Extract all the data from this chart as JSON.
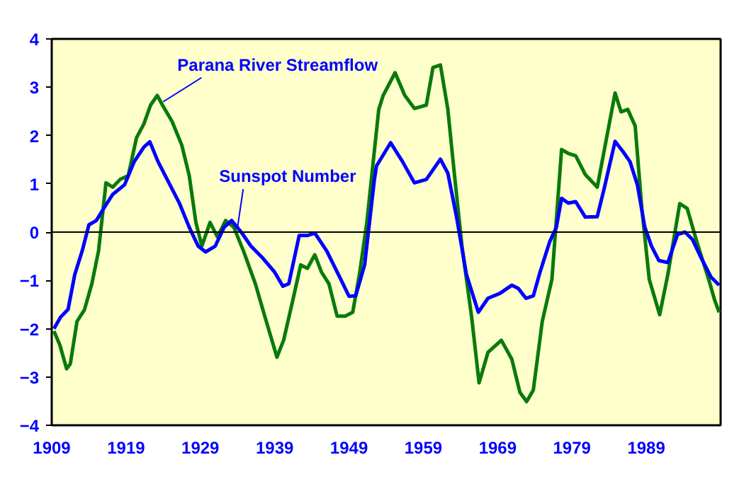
{
  "chart_data": {
    "type": "line",
    "xlim": [
      1909,
      1999
    ],
    "xticks": [
      1909,
      1919,
      1929,
      1939,
      1949,
      1959,
      1969,
      1979,
      1989
    ],
    "ylim": [
      -4,
      4
    ],
    "yticks": [
      -4,
      -3,
      -2,
      -1,
      0,
      1,
      2,
      3,
      4
    ],
    "grid": false,
    "marker": "none",
    "line_style": "solid",
    "ref_lines": [
      {
        "axis": "y",
        "value": 0,
        "color": "#000000"
      }
    ],
    "annotations": [
      {
        "text": "Parana River Streamflow",
        "x": 1924,
        "y": 2.7
      },
      {
        "text": "Sunspot Number",
        "x": 1934,
        "y": 0.1
      }
    ],
    "series": [
      {
        "color": "#0a7a0a",
        "x": [
          1909.3,
          1910.1,
          1911.0,
          1911.5,
          1912.4,
          1913.4,
          1914.4,
          1915.3,
          1916.3,
          1917.2,
          1918.2,
          1919.3,
          1920.4,
          1921.4,
          1922.3,
          1923.2,
          1923.9,
          1925.2,
          1926.5,
          1927.5,
          1928.4,
          1929.2,
          1930.3,
          1931.3,
          1932.4,
          1933.5,
          1934.8,
          1936.4,
          1937.7,
          1939.3,
          1940.2,
          1941.5,
          1942.5,
          1943.4,
          1944.4,
          1945.3,
          1946.3,
          1947.4,
          1948.5,
          1949.5,
          1950.4,
          1951.4,
          1953.0,
          1953.6,
          1955.2,
          1956.5,
          1957.8,
          1959.4,
          1960.3,
          1961.3,
          1962.3,
          1963.2,
          1964.2,
          1965.5,
          1966.5,
          1967.7,
          1969.5,
          1970.9,
          1972.0,
          1972.9,
          1973.8,
          1975.0,
          1976.3,
          1977.6,
          1978.5,
          1979.5,
          1980.8,
          1982.4,
          1983.3,
          1984.8,
          1985.6,
          1986.5,
          1987.5,
          1988.4,
          1989.4,
          1990.8,
          1991.9,
          1993.5,
          1994.5,
          1995.8,
          1997.4,
          1998.2,
          1998.8
        ],
        "values": [
          -2.05,
          -2.34,
          -2.83,
          -2.73,
          -1.85,
          -1.61,
          -1.07,
          -0.39,
          1.02,
          0.93,
          1.09,
          1.17,
          1.95,
          2.24,
          2.63,
          2.83,
          2.63,
          2.29,
          1.8,
          1.17,
          0.2,
          -0.29,
          0.2,
          -0.1,
          0.24,
          0.1,
          -0.39,
          -1.07,
          -1.76,
          -2.59,
          -2.24,
          -1.37,
          -0.68,
          -0.75,
          -0.47,
          -0.83,
          -1.07,
          -1.74,
          -1.74,
          -1.66,
          -0.88,
          0.2,
          2.54,
          2.83,
          3.3,
          2.83,
          2.56,
          2.63,
          3.41,
          3.46,
          2.54,
          1.17,
          -0.29,
          -1.76,
          -3.12,
          -2.49,
          -2.24,
          -2.63,
          -3.32,
          -3.51,
          -3.27,
          -1.85,
          -0.98,
          1.71,
          1.63,
          1.58,
          1.19,
          0.93,
          1.66,
          2.88,
          2.49,
          2.54,
          2.2,
          0.49,
          -0.98,
          -1.71,
          -0.88,
          0.59,
          0.49,
          -0.2,
          -0.98,
          -1.41,
          -1.66
        ]
      },
      {
        "color": "#0000ff",
        "x": [
          1909.3,
          1910.2,
          1911.2,
          1912.1,
          1913.1,
          1914.0,
          1915.0,
          1916.0,
          1917.2,
          1918.8,
          1920.1,
          1921.4,
          1922.2,
          1923.3,
          1924.6,
          1926.2,
          1927.5,
          1928.7,
          1929.7,
          1931.0,
          1932.2,
          1933.2,
          1934.5,
          1935.8,
          1937.4,
          1939.0,
          1940.1,
          1940.9,
          1942.3,
          1943.4,
          1944.4,
          1946.0,
          1947.9,
          1949.0,
          1949.9,
          1951.1,
          1952.4,
          1952.7,
          1954.6,
          1956.2,
          1957.8,
          1959.4,
          1961.3,
          1962.3,
          1963.5,
          1964.8,
          1966.4,
          1967.7,
          1969.3,
          1970.9,
          1971.8,
          1972.8,
          1973.8,
          1974.7,
          1976.0,
          1976.9,
          1977.6,
          1978.5,
          1979.5,
          1980.8,
          1982.4,
          1983.3,
          1984.8,
          1985.9,
          1986.8,
          1987.8,
          1988.8,
          1989.7,
          1990.7,
          1991.9,
          1993.2,
          1994.2,
          1995.2,
          1996.4,
          1997.7,
          1998.8
        ],
        "values": [
          -2.0,
          -1.76,
          -1.6,
          -0.88,
          -0.39,
          0.15,
          0.24,
          0.49,
          0.78,
          0.98,
          1.46,
          1.76,
          1.87,
          1.46,
          1.07,
          0.59,
          0.1,
          -0.29,
          -0.41,
          -0.29,
          0.1,
          0.24,
          0,
          -0.29,
          -0.54,
          -0.83,
          -1.12,
          -1.07,
          -0.07,
          -0.07,
          -0.02,
          -0.39,
          -0.98,
          -1.33,
          -1.32,
          -0.68,
          1.07,
          1.37,
          1.85,
          1.46,
          1.02,
          1.09,
          1.51,
          1.22,
          0.29,
          -0.88,
          -1.66,
          -1.37,
          -1.27,
          -1.1,
          -1.17,
          -1.37,
          -1.32,
          -0.83,
          -0.2,
          0.1,
          0.7,
          0.6,
          0.63,
          0.31,
          0.32,
          0.88,
          1.88,
          1.66,
          1.46,
          0.98,
          0.1,
          -0.29,
          -0.59,
          -0.63,
          -0.05,
          0,
          -0.15,
          -0.54,
          -0.93,
          -1.1
        ]
      }
    ]
  }
}
